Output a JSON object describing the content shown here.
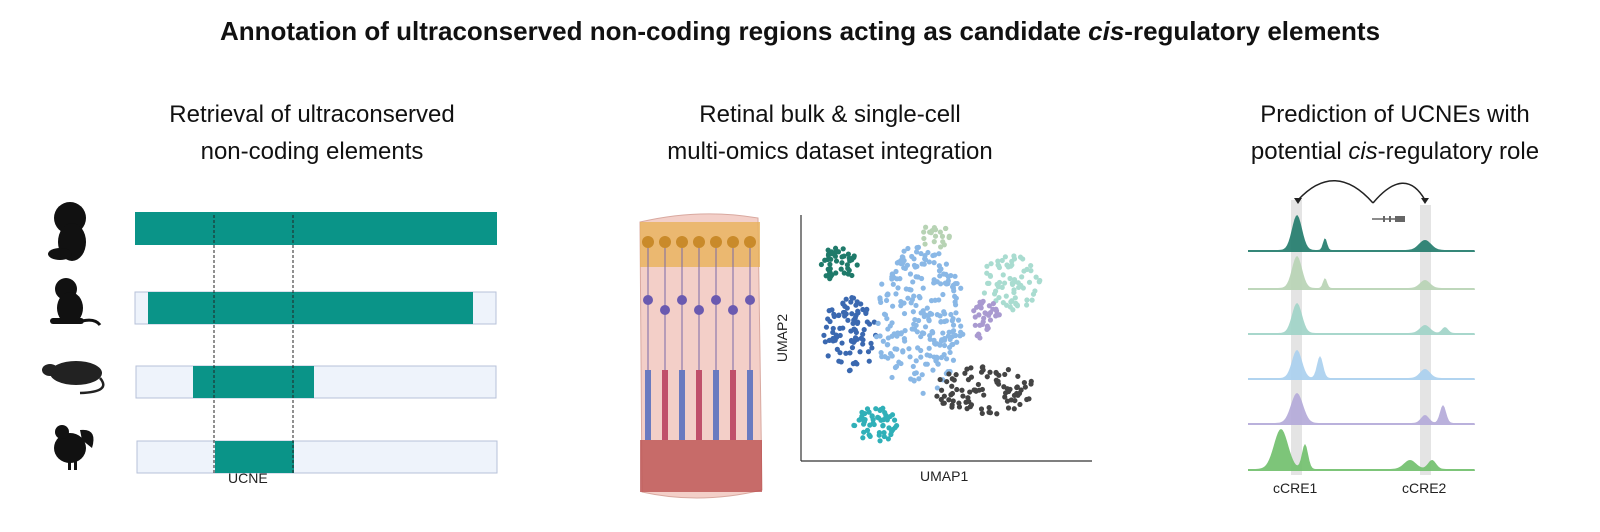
{
  "title": {
    "prefix": "Annotation of ultraconserved non-coding regions acting as candidate ",
    "italic": "cis",
    "suffix": "-regulatory elements"
  },
  "panels": [
    {
      "title_line1": "Retrieval of ultraconserved",
      "title_line2": "non-coding elements",
      "label": "UCNE",
      "species_icons": [
        "human-fetus-icon",
        "monkey-icon",
        "mouse-icon",
        "chicken-icon"
      ]
    },
    {
      "title_line1": "Retinal bulk & single-cell",
      "title_line2": "multi-omics dataset integration",
      "xlabel": "UMAP1",
      "ylabel": "UMAP2"
    },
    {
      "title_line1": "Prediction of UCNEs with",
      "title_line2_italic": "cis",
      "title_line2_prefix": "potential ",
      "title_line2_suffix": "-regulatory role",
      "labels": [
        "cCRE1",
        "cCRE2"
      ]
    }
  ],
  "colors": {
    "conserved": "#0a9488",
    "background_bar": "#eef3fb",
    "tracks": [
      "#1f7a6a",
      "#b7d3b4",
      "#9fd3c7",
      "#a9cfee",
      "#b3a8d8",
      "#6fbf6a"
    ]
  }
}
